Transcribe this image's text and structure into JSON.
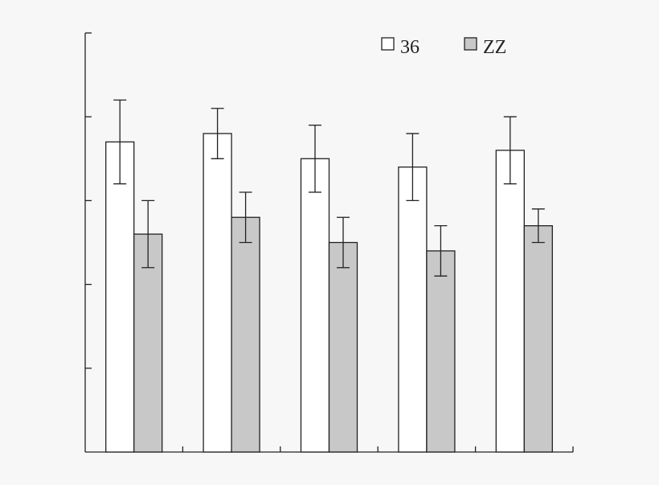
{
  "chart_data": {
    "type": "bar",
    "categories": [
      "",
      "",
      "",
      "",
      ""
    ],
    "series": [
      {
        "name": "36",
        "color": "#ffffff",
        "values": [
          0.74,
          0.76,
          0.7,
          0.68,
          0.72
        ],
        "errors": [
          0.1,
          0.06,
          0.08,
          0.08,
          0.08
        ]
      },
      {
        "name": "ZZ",
        "color": "#c8c8c8",
        "values": [
          0.52,
          0.56,
          0.5,
          0.48,
          0.54
        ],
        "errors": [
          0.08,
          0.06,
          0.06,
          0.06,
          0.04
        ]
      }
    ],
    "ylim": [
      0,
      1.0
    ],
    "ytick_count": 5,
    "grid": false,
    "legend_position": "top-right",
    "title": "",
    "xlabel": "",
    "ylabel": ""
  }
}
